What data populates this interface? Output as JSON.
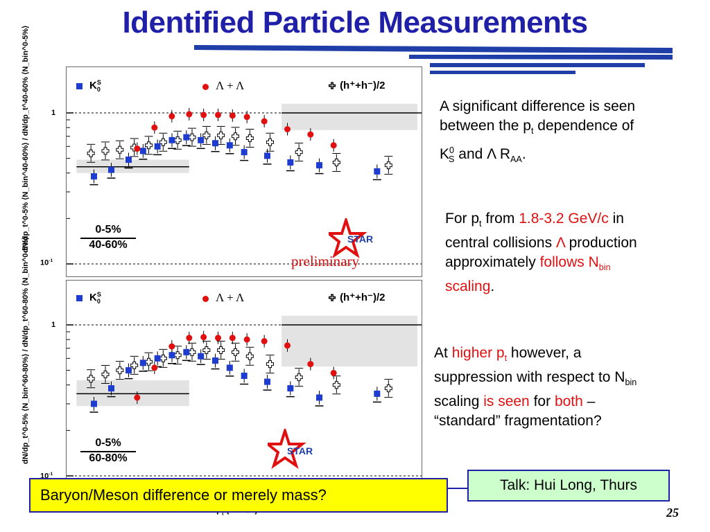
{
  "title": "Identified Particle Measurements",
  "colors": {
    "title": "#1f1fa8",
    "kaon": "#1e3ccf",
    "lambda": "#e01010",
    "highlight": "#e01010",
    "band": "#e3e3e3"
  },
  "icons": {
    "kaon_marker": "blue-square-marker",
    "lambda_marker": "red-circle-marker",
    "hadron_marker": "open-cross-marker",
    "logo": "star-logo"
  },
  "panels": [
    {
      "ylabel": "dN/dp_t^0-5% ⟨N_bin^40-60%⟩ / dN/dp_t^40-60% ⟨N_bin^0-5%⟩",
      "tick_1": "1",
      "tick_01": "10",
      "ratio_num": "0-5%",
      "ratio_den": "40-60%",
      "legend_k0": "K",
      "legend_k0_sup": "S",
      "legend_k0_sub": "0",
      "legend_lambda": "Λ + Λ",
      "legend_hadron": "(h⁺+h⁻)/2",
      "logo_text": "STAR",
      "preliminary": "preliminary"
    },
    {
      "ylabel": "dN/dp_t^0-5% ⟨N_bin^60-80%⟩ / dN/dp_t^60-80% ⟨N_bin^0-5%⟩",
      "tick_1": "1",
      "tick_01": "10",
      "ratio_num": "0-5%",
      "ratio_den": "60-80%",
      "legend_k0": "K",
      "legend_k0_sup": "S",
      "legend_k0_sub": "0",
      "legend_lambda": "Λ + Λ",
      "legend_hadron": "(h⁺+h⁻)/2",
      "logo_text": "STAR"
    }
  ],
  "xlabel": "p",
  "xlabel_sub": "t",
  "xlabel_unit": " (GeV/c)",
  "chart_data": [
    {
      "type": "scatter",
      "title": "0-5% / 40-60%",
      "yscale": "log",
      "series": [
        {
          "name": "K0S",
          "x": [
            0.45,
            0.75,
            1.05,
            1.3,
            1.55,
            1.8,
            2.05,
            2.3,
            2.55,
            2.8,
            3.05,
            3.45,
            3.85,
            4.35,
            5.35
          ],
          "y": [
            0.38,
            0.42,
            0.49,
            0.56,
            0.6,
            0.66,
            0.69,
            0.66,
            0.63,
            0.61,
            0.55,
            0.52,
            0.47,
            0.45,
            0.41
          ]
        },
        {
          "name": "Lambda+AntiLambda",
          "x": [
            1.15,
            1.45,
            1.75,
            2.05,
            2.3,
            2.55,
            2.8,
            3.05,
            3.35,
            3.75,
            4.15,
            4.55
          ],
          "y": [
            0.58,
            0.8,
            0.95,
            0.98,
            0.97,
            0.97,
            0.96,
            0.94,
            0.88,
            0.78,
            0.72,
            0.61
          ]
        },
        {
          "name": "(h++h-)/2",
          "x": [
            0.35,
            0.6,
            0.85,
            1.1,
            1.35,
            1.6,
            1.85,
            2.1,
            2.35,
            2.6,
            2.85,
            3.1,
            3.45,
            3.95,
            4.6,
            5.5
          ],
          "y": [
            0.54,
            0.56,
            0.57,
            0.59,
            0.61,
            0.64,
            0.66,
            0.69,
            0.71,
            0.71,
            0.7,
            0.68,
            0.64,
            0.55,
            0.47,
            0.45
          ]
        }
      ]
    },
    {
      "type": "scatter",
      "title": "0-5% / 60-80%",
      "yscale": "log",
      "series": [
        {
          "name": "K0S",
          "x": [
            0.45,
            0.75,
            1.05,
            1.3,
            1.55,
            1.8,
            2.05,
            2.3,
            2.55,
            2.8,
            3.05,
            3.45,
            3.85,
            4.35,
            5.35
          ],
          "y": [
            0.3,
            0.38,
            0.5,
            0.56,
            0.6,
            0.63,
            0.66,
            0.62,
            0.58,
            0.52,
            0.46,
            0.42,
            0.38,
            0.33,
            0.35
          ]
        },
        {
          "name": "Lambda+AntiLambda",
          "x": [
            1.15,
            1.45,
            1.75,
            2.05,
            2.3,
            2.55,
            2.8,
            3.05,
            3.35,
            3.75,
            4.15,
            4.55
          ],
          "y": [
            0.33,
            0.52,
            0.72,
            0.82,
            0.83,
            0.82,
            0.82,
            0.8,
            0.78,
            0.73,
            0.55,
            0.48
          ]
        },
        {
          "name": "(h++h-)/2",
          "x": [
            0.35,
            0.6,
            0.85,
            1.1,
            1.35,
            1.6,
            1.85,
            2.1,
            2.35,
            2.6,
            2.85,
            3.1,
            3.45,
            3.95,
            4.6,
            5.5
          ],
          "y": [
            0.44,
            0.47,
            0.5,
            0.54,
            0.57,
            0.6,
            0.63,
            0.66,
            0.68,
            0.68,
            0.66,
            0.62,
            0.55,
            0.45,
            0.4,
            0.38
          ]
        }
      ]
    }
  ],
  "text": {
    "b1_line1": "A significant difference is seen",
    "b1_line2a": "between the p",
    "b1_line2_sub": "t",
    "b1_line2b": " dependence of",
    "b1_line3a": "K",
    "b1_line3_sup": "0",
    "b1_line3_sub": "S",
    "b1_line3b": " and Λ R",
    "b1_line3_sub2": "AA",
    "b1_line3c": ".",
    "b2_line1a": "For p",
    "b2_line1_sub": "t",
    "b2_line1b": " from ",
    "b2_line1_red": "1.8-3.2 GeV/c",
    "b2_line1c": " in",
    "b2_line2a": "central collisions ",
    "b2_line2_red": "Λ",
    "b2_line2b": " production",
    "b2_line3a": "approximately ",
    "b2_line3_red": "follows N",
    "b2_line3_sub": "bin",
    "b2_line4_red": "scaling",
    "b2_line4b": ".",
    "b3_line1a": "At ",
    "b3_line1_red": "higher p",
    "b3_line1_sub": "t",
    "b3_line1b": " however, a",
    "b3_line2a": "suppression with respect to N",
    "b3_line2_sub": "bin",
    "b3_line3a": "scaling ",
    "b3_line3_red": "is seen",
    "b3_line3b": " for ",
    "b3_line3_red2": "both",
    "b3_line3c": " –",
    "b3_line4": "“standard” fragmentation?"
  },
  "bottom_box": "Baryon/Meson difference or merely mass?",
  "talk_box": "Talk: Hui Long, Thurs",
  "page_number": "25"
}
